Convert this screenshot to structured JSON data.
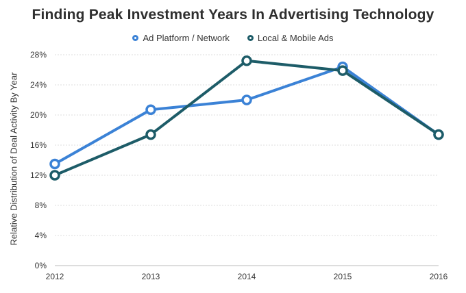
{
  "chart_data": {
    "type": "line",
    "title": "Finding Peak Investment Years In Advertising Technology",
    "xlabel": "",
    "ylabel": "Relative Distribution of Deal Activity By Year",
    "categories": [
      "2012",
      "2013",
      "2014",
      "2015",
      "2016"
    ],
    "ylim": [
      0,
      28
    ],
    "yticks": [
      "0%",
      "4%",
      "8%",
      "12%",
      "16%",
      "20%",
      "24%",
      "28%"
    ],
    "grid": "horizontal",
    "legend_position": "top",
    "series": [
      {
        "name": "Ad Platform / Network",
        "color": "#3b82d6",
        "values": [
          13.5,
          20.7,
          22.0,
          26.4,
          17.4
        ]
      },
      {
        "name": "Local & Mobile Ads",
        "color": "#1d5c68",
        "values": [
          12.0,
          17.4,
          27.2,
          25.9,
          17.4
        ]
      }
    ]
  }
}
